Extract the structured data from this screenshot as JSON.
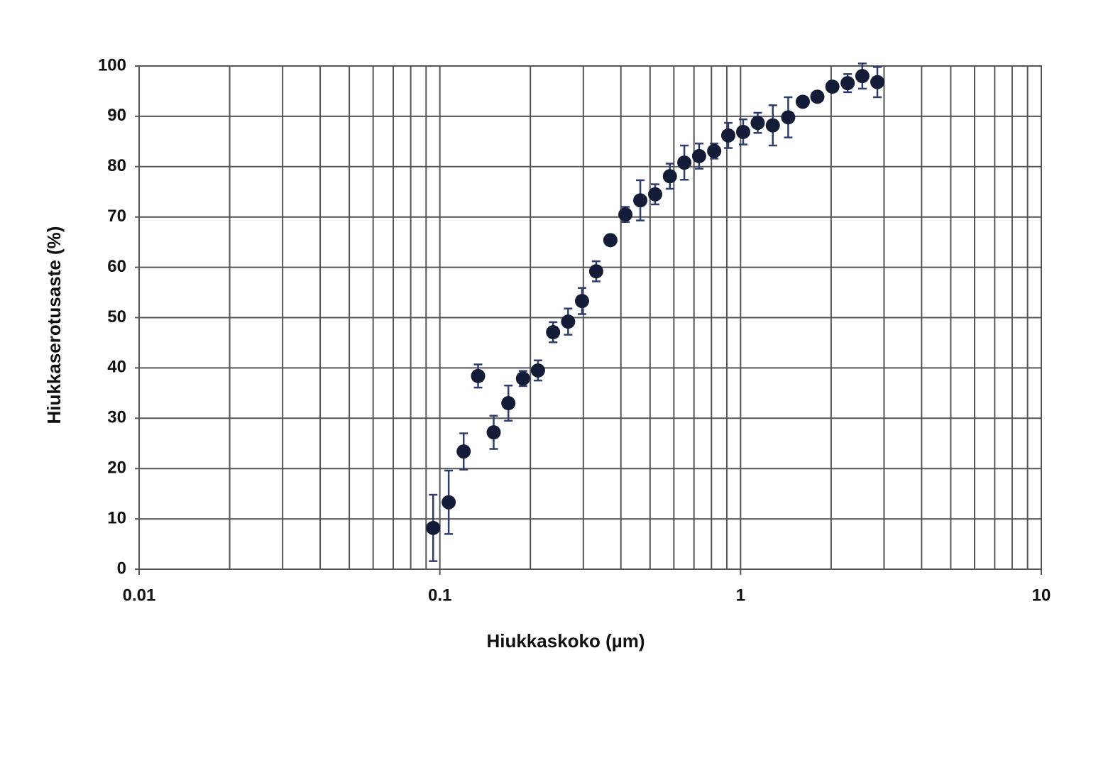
{
  "chart_data": {
    "type": "scatter",
    "x_label": "Hiukkaskoko (µm)",
    "y_label": "Hiukkaserotusaste (%)",
    "xscale": "log",
    "xlim": [
      0.01,
      10
    ],
    "ylim": [
      0,
      100
    ],
    "xticks": [
      0.01,
      0.1,
      1,
      10
    ],
    "xminorticks": [
      0.02,
      0.03,
      0.04,
      0.05,
      0.06,
      0.07,
      0.08,
      0.09,
      0.2,
      0.3,
      0.4,
      0.5,
      0.6,
      0.7,
      0.8,
      0.9,
      2,
      3,
      4,
      5,
      6,
      7,
      8,
      9
    ],
    "yticks": [
      0,
      10,
      20,
      30,
      40,
      50,
      60,
      70,
      80,
      90,
      100
    ],
    "grid": true,
    "series": [
      {
        "color": "#141c38",
        "error_color": "#2e3d6e",
        "x": [
          0.095,
          0.107,
          0.12,
          0.134,
          0.151,
          0.169,
          0.189,
          0.212,
          0.238,
          0.267,
          0.297,
          0.331,
          0.369,
          0.414,
          0.464,
          0.52,
          0.582,
          0.65,
          0.728,
          0.817,
          0.91,
          1.02,
          1.14,
          1.28,
          1.44,
          1.61,
          1.8,
          2.02,
          2.27,
          2.54,
          2.85
        ],
        "values": [
          8.2,
          13.3,
          23.4,
          38.4,
          27.2,
          33.0,
          37.9,
          39.5,
          47.1,
          49.2,
          53.3,
          59.2,
          65.4,
          70.5,
          73.3,
          74.5,
          78.1,
          80.8,
          82.1,
          83.1,
          86.2,
          86.9,
          88.7,
          88.2,
          89.8,
          92.9,
          93.9,
          95.9,
          96.6,
          98.0,
          96.8
        ],
        "errors": [
          6.6,
          6.3,
          3.6,
          2.3,
          3.3,
          3.5,
          1.5,
          2.0,
          2.0,
          2.6,
          2.6,
          2.0,
          1.0,
          1.5,
          4.0,
          2.0,
          2.5,
          3.4,
          2.5,
          1.5,
          2.5,
          2.5,
          2.0,
          4.0,
          4.0,
          1.0,
          0.5,
          1.0,
          1.8,
          2.5,
          3.0
        ]
      }
    ]
  }
}
